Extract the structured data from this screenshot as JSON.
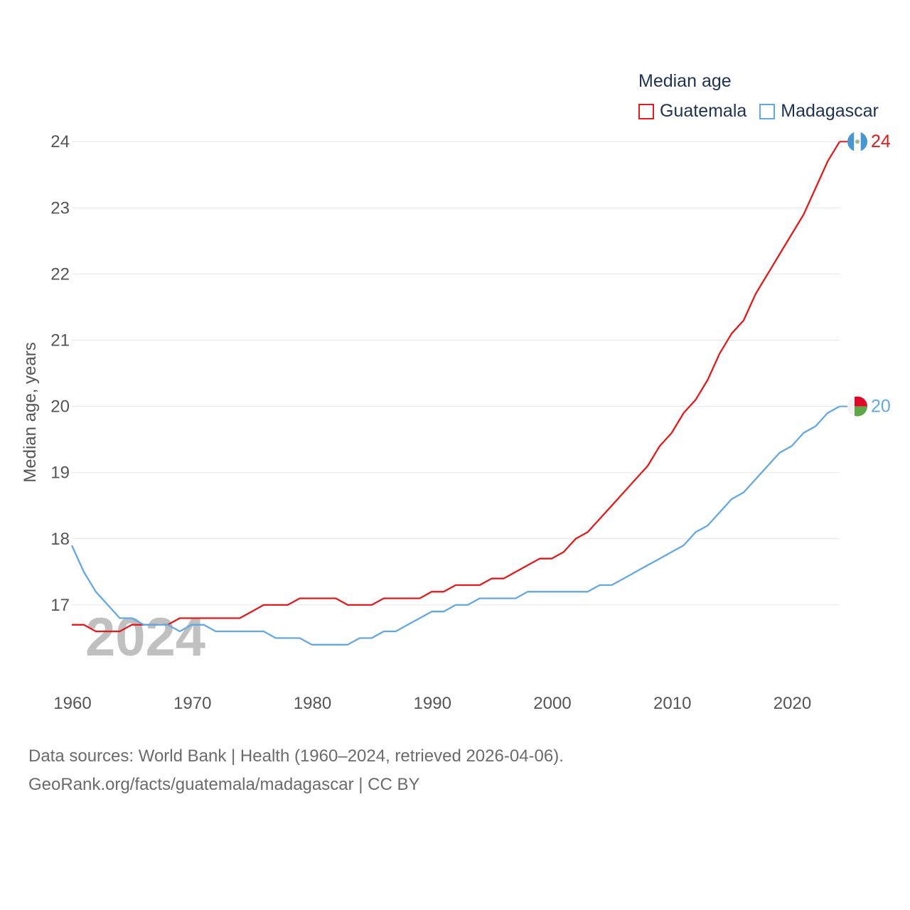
{
  "legend": {
    "title": "Median age",
    "items": [
      {
        "name": "Guatemala",
        "color": "#e31a1c"
      },
      {
        "name": "Madagascar",
        "color": "#64a8e3"
      }
    ]
  },
  "footer": {
    "line1": "Data sources: World Bank | Health (1960–2024, retrieved 2026-04-06).",
    "line2": "GeoRank.org/facts/guatemala/madagascar | CC BY"
  },
  "chart_data": {
    "type": "line",
    "title": "Median age",
    "ylabel": "Median age, years",
    "xlabel": "",
    "year_label": "2024",
    "xlim": [
      1960,
      2024
    ],
    "ylim": [
      16,
      24.4
    ],
    "yticks": [
      17,
      18,
      19,
      20,
      21,
      22,
      23,
      24
    ],
    "xticks": [
      1960,
      1970,
      1980,
      1990,
      2000,
      2010,
      2020
    ],
    "x": [
      1960,
      1961,
      1962,
      1963,
      1964,
      1965,
      1966,
      1967,
      1968,
      1969,
      1970,
      1971,
      1972,
      1973,
      1974,
      1975,
      1976,
      1977,
      1978,
      1979,
      1980,
      1981,
      1982,
      1983,
      1984,
      1985,
      1986,
      1987,
      1988,
      1989,
      1990,
      1991,
      1992,
      1993,
      1994,
      1995,
      1996,
      1997,
      1998,
      1999,
      2000,
      2001,
      2002,
      2003,
      2004,
      2005,
      2006,
      2007,
      2008,
      2009,
      2010,
      2011,
      2012,
      2013,
      2014,
      2015,
      2016,
      2017,
      2018,
      2019,
      2020,
      2021,
      2022,
      2023,
      2024
    ],
    "series": [
      {
        "name": "Guatemala",
        "color": "#e31a1c",
        "end_label": "24",
        "values": [
          16.7,
          16.7,
          16.6,
          16.6,
          16.6,
          16.7,
          16.7,
          16.7,
          16.7,
          16.8,
          16.8,
          16.8,
          16.8,
          16.8,
          16.8,
          16.9,
          17.0,
          17.0,
          17.0,
          17.1,
          17.1,
          17.1,
          17.1,
          17.0,
          17.0,
          17.0,
          17.1,
          17.1,
          17.1,
          17.1,
          17.2,
          17.2,
          17.3,
          17.3,
          17.3,
          17.4,
          17.4,
          17.5,
          17.6,
          17.7,
          17.7,
          17.8,
          18.0,
          18.1,
          18.3,
          18.5,
          18.7,
          18.9,
          19.1,
          19.4,
          19.6,
          19.9,
          20.1,
          20.4,
          20.8,
          21.1,
          21.3,
          21.7,
          22.0,
          22.3,
          22.6,
          22.9,
          23.3,
          23.7,
          24.0
        ]
      },
      {
        "name": "Madagascar",
        "color": "#64a8e3",
        "end_label": "20",
        "values": [
          17.9,
          17.5,
          17.2,
          17.0,
          16.8,
          16.8,
          16.7,
          16.7,
          16.7,
          16.6,
          16.7,
          16.7,
          16.6,
          16.6,
          16.6,
          16.6,
          16.6,
          16.5,
          16.5,
          16.5,
          16.4,
          16.4,
          16.4,
          16.4,
          16.5,
          16.5,
          16.6,
          16.6,
          16.7,
          16.8,
          16.9,
          16.9,
          17.0,
          17.0,
          17.1,
          17.1,
          17.1,
          17.1,
          17.2,
          17.2,
          17.2,
          17.2,
          17.2,
          17.2,
          17.3,
          17.3,
          17.4,
          17.5,
          17.6,
          17.7,
          17.8,
          17.9,
          18.1,
          18.2,
          18.4,
          18.6,
          18.7,
          18.9,
          19.1,
          19.3,
          19.4,
          19.6,
          19.7,
          19.9,
          20.0
        ]
      }
    ]
  }
}
